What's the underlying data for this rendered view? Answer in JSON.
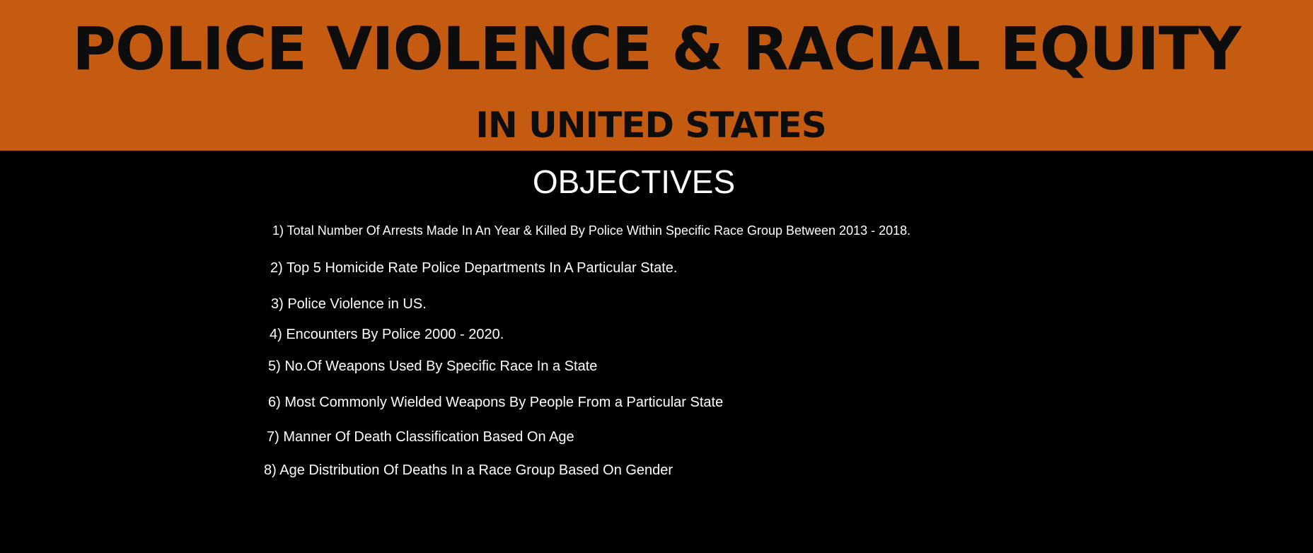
{
  "banner": {
    "title": "POLICE VIOLENCE & RACIAL EQUITY",
    "subtitle": "IN UNITED STATES",
    "background_color": "#c55a11",
    "text_color": "#0d0d0d"
  },
  "objectives": {
    "heading": "OBJECTIVES",
    "items": [
      "1) Total Number Of Arrests Made In An Year  & Killed By Police Within Specific Race Group Between 2013 - 2018.",
      "2) Top 5 Homicide Rate Police Departments In A Particular State.",
      "3) Police Violence in US.",
      "4) Encounters By Police 2000 - 2020.",
      "5) No.Of Weapons Used By Specific Race In a State",
      "6) Most Commonly Wielded Weapons By People From a Particular State",
      "7) Manner Of Death Classification Based On Age",
      "8) Age Distribution Of Deaths In a Race Group Based On Gender"
    ]
  },
  "page": {
    "background_color": "#000000",
    "text_color": "#ffffff"
  }
}
